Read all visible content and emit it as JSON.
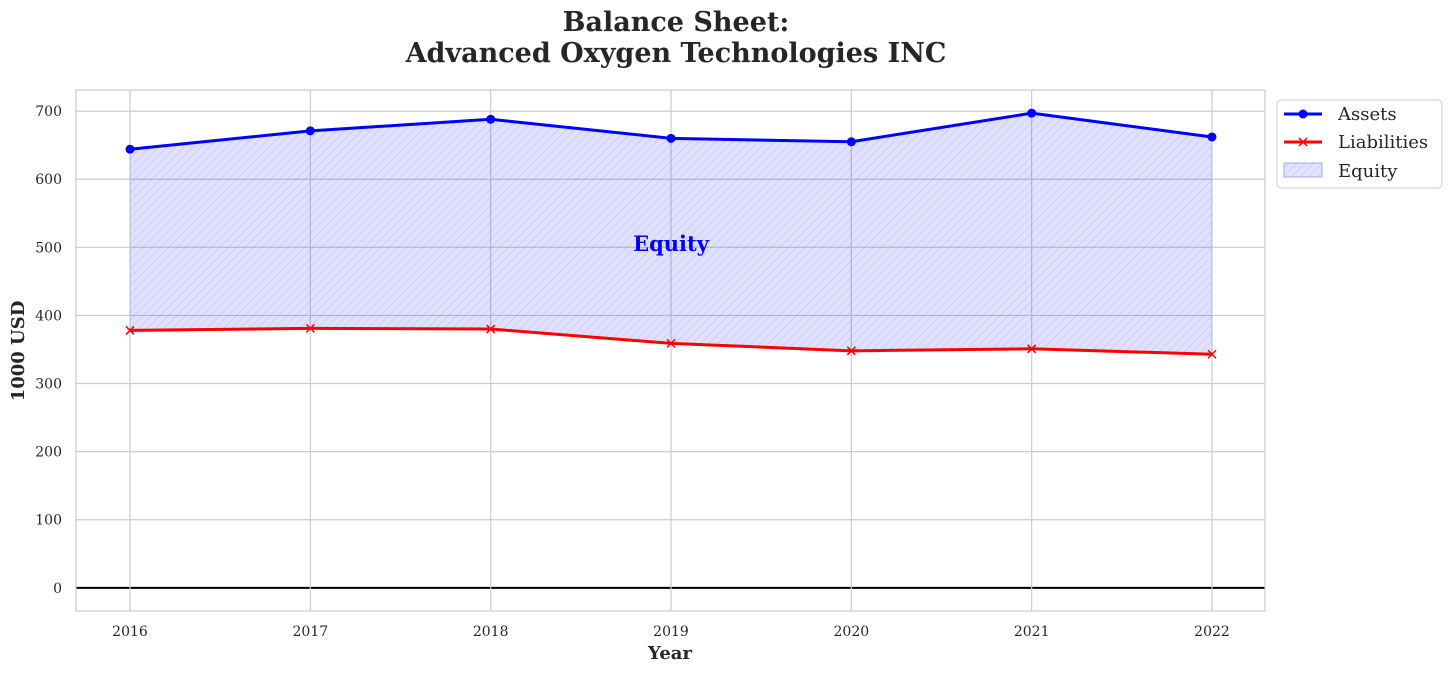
{
  "chart_data": {
    "type": "line",
    "title_line1": "Balance Sheet:",
    "title_line2": "Advanced Oxygen Technologies INC",
    "xlabel": "Year",
    "ylabel": "1000 USD",
    "x": [
      "2016",
      "2017",
      "2018",
      "2019",
      "2020",
      "2021",
      "2022"
    ],
    "yticks": [
      0,
      100,
      200,
      300,
      400,
      500,
      600,
      700
    ],
    "ylim": [
      -34,
      731
    ],
    "series": [
      {
        "name": "Assets",
        "color": "#0000ff",
        "marker": "circle",
        "values": [
          644,
          671,
          688,
          660,
          655,
          697,
          662
        ]
      },
      {
        "name": "Liabilities",
        "color": "#ff0000",
        "marker": "x",
        "values": [
          378,
          381,
          380,
          359,
          348,
          351,
          343
        ]
      }
    ],
    "fill": {
      "name": "Equity",
      "between": [
        "Assets",
        "Liabilities"
      ],
      "color": "#0000ff",
      "alpha": 0.12,
      "hatch": "////"
    },
    "annotation": {
      "text": "Equity",
      "x": "2019",
      "y": 505,
      "color": "#0000ff"
    },
    "legend": {
      "placement": "outside-top-right",
      "entries": [
        "Assets",
        "Liabilities",
        "Equity"
      ]
    },
    "grid": true
  }
}
